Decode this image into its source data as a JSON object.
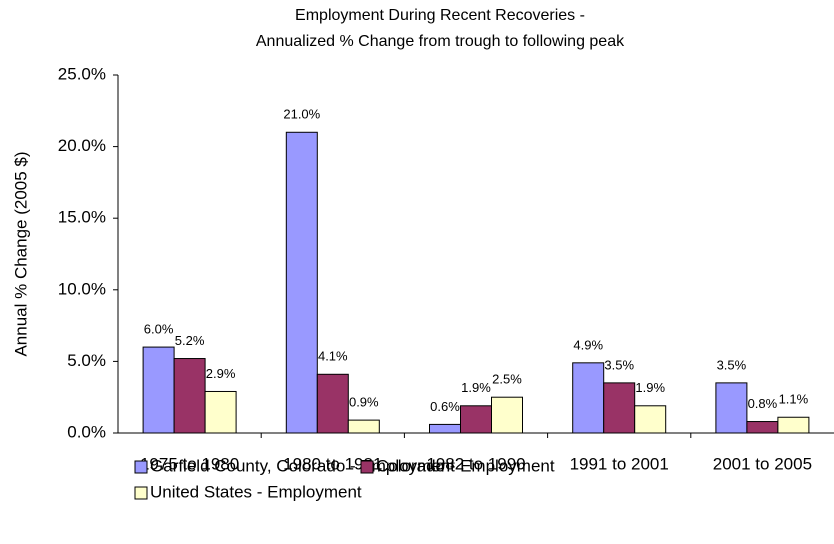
{
  "chart_data": {
    "type": "bar",
    "title": "Employment During Recent Recoveries -",
    "subtitle": "Annualized % Change from trough to following peak",
    "y_label": "Annual % Change (2005 $)",
    "categories": [
      "1975 to 1980",
      "1980 to 1981",
      "1982 to 1990",
      "1991 to 2001",
      "2001 to 2005"
    ],
    "series": [
      {
        "name": "Garfield County, Colorado - Employment",
        "color": "#9999ff",
        "values": [
          6.0,
          21.0,
          0.6,
          4.9,
          3.5
        ],
        "value_labels": [
          "6.0%",
          "21.0%",
          "0.6%",
          "4.9%",
          "3.5%"
        ]
      },
      {
        "name": "Colorado - Employment",
        "color": "#993366",
        "values": [
          5.2,
          4.1,
          1.9,
          3.5,
          0.8
        ],
        "value_labels": [
          "5.2%",
          "4.1%",
          "1.9%",
          "3.5%",
          "0.8%"
        ]
      },
      {
        "name": "United States - Employment",
        "color": "#ffffcc",
        "values": [
          2.9,
          0.9,
          2.5,
          1.9,
          1.1
        ],
        "value_labels": [
          "2.9%",
          "0.9%",
          "2.5%",
          "1.9%",
          "1.1%"
        ]
      }
    ],
    "ylim": [
      0,
      25
    ],
    "yticks": [
      {
        "value": 0,
        "label": "0.0%"
      },
      {
        "value": 5,
        "label": "5.0%"
      },
      {
        "value": 10,
        "label": "10.0%"
      },
      {
        "value": 15,
        "label": "15.0%"
      },
      {
        "value": 20,
        "label": "20.0%"
      },
      {
        "value": 25,
        "label": "25.0%"
      }
    ],
    "grid": false,
    "legend": "bottom"
  }
}
